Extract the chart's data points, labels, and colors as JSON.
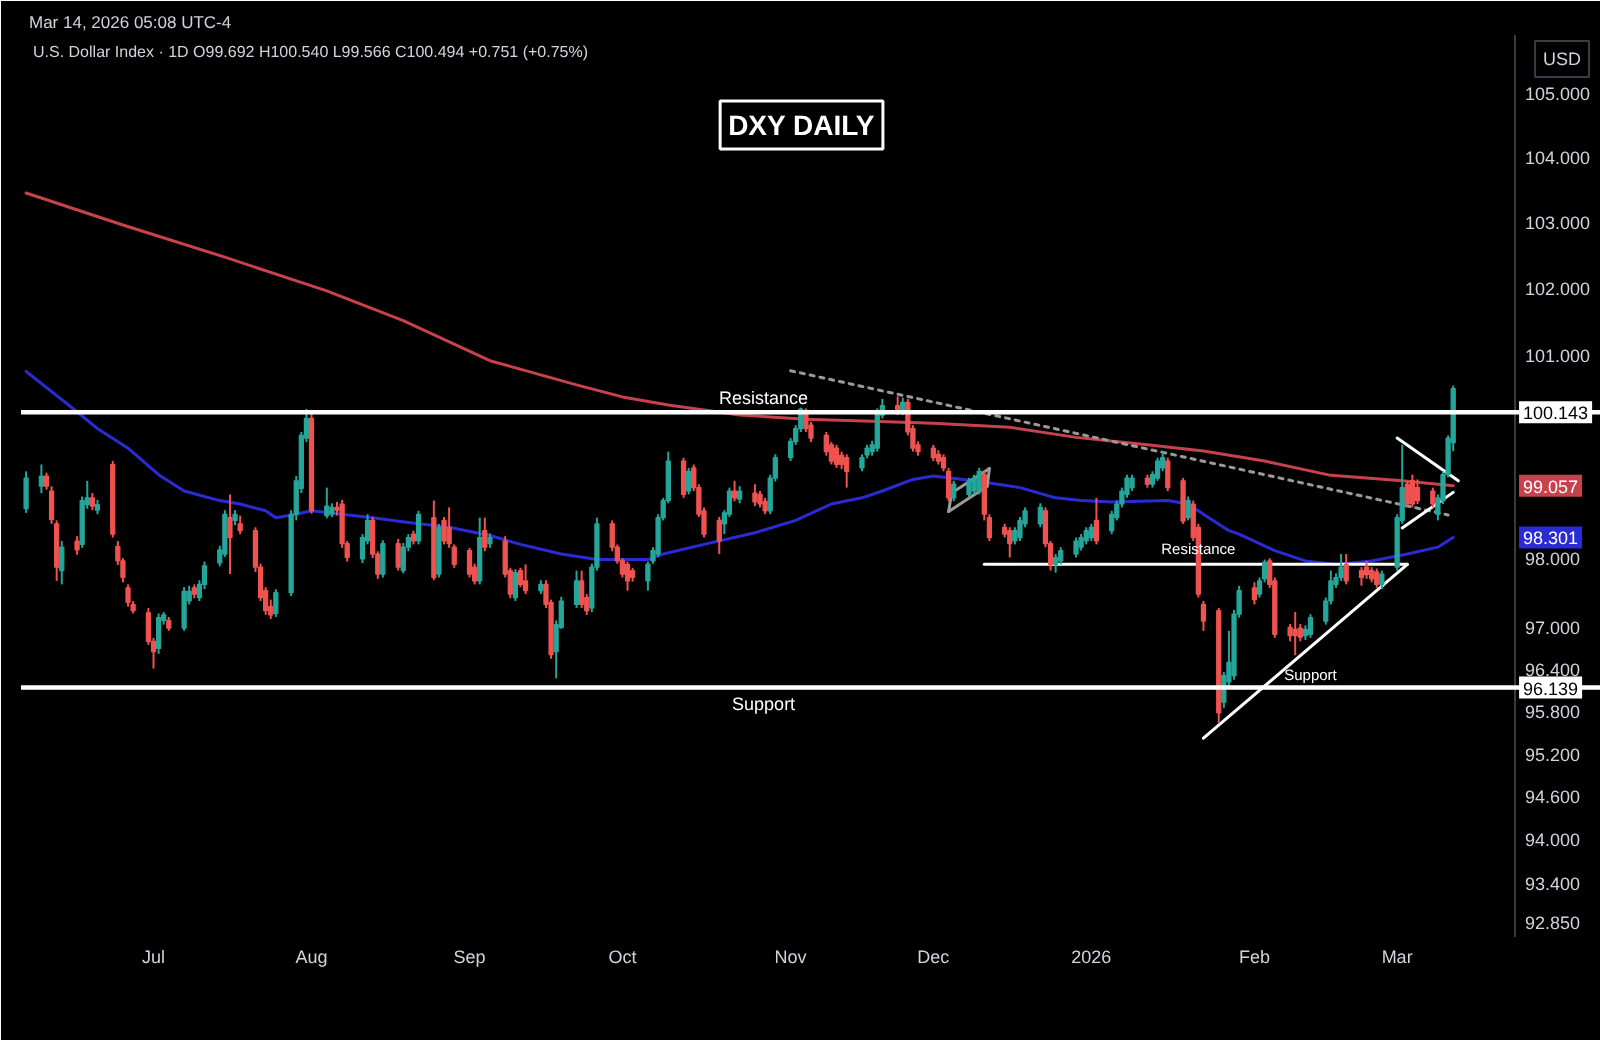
{
  "chart_data": {
    "type": "candlestick",
    "title": "DXY DAILY",
    "subtitle": "U.S. Dollar Index · 1D   O99.692 H100.540 L99.566 C100.494 +0.751 (+0.75%)",
    "ylabel": "USD",
    "annotations": [
      "Mar 14, 2026 05:08 UTC-4",
      {
        "text": "Resistance",
        "x": "2026-01-22",
        "y": 97.91
      },
      {
        "text": "Support",
        "x": "2026-02-13",
        "y": 96.1
      },
      {
        "text": "100.143",
        "y": 100.143
      },
      {
        "text": "99.057",
        "y": 99.057
      },
      {
        "text": "98.301",
        "y": 98.301
      },
      {
        "text": "96.139",
        "y": 96.139
      }
    ],
    "log": true,
    "grid": false,
    "ylim": [
      92.65,
      105.9
    ],
    "yticks": [
      {
        "value": 92.85,
        "label": "92.850"
      },
      {
        "value": 93.4,
        "label": "93.400"
      },
      {
        "value": 94,
        "label": "94.000"
      },
      {
        "value": 94.6,
        "label": "94.600"
      },
      {
        "value": 95.2,
        "label": "95.200"
      },
      {
        "value": 95.8,
        "label": "95.800"
      },
      {
        "value": 96.4,
        "label": "96.400"
      },
      {
        "value": 97,
        "label": "97.000"
      },
      {
        "value": 98,
        "label": "98.000"
      },
      {
        "value": 101,
        "label": "101.000"
      },
      {
        "value": 102,
        "label": "102.000"
      },
      {
        "value": 103,
        "label": "103.000"
      },
      {
        "value": 104,
        "label": "104.000"
      },
      {
        "value": 105,
        "label": "105.000"
      }
    ],
    "xlim": [
      "2025-06-05",
      "2026-04-11"
    ],
    "xticks": [
      {
        "value": "2025-07-01",
        "label": "Jul"
      },
      {
        "value": "2025-08-01",
        "label": "Aug"
      },
      {
        "value": "2025-09-01",
        "label": "Sep"
      },
      {
        "value": "2025-10-01",
        "label": "Oct"
      },
      {
        "value": "2025-11-03",
        "label": "Nov"
      },
      {
        "value": "2025-12-01",
        "label": "Dec"
      },
      {
        "value": "2026-01-01",
        "label": "2026"
      },
      {
        "value": "2026-02-02",
        "label": "Feb"
      },
      {
        "value": "2026-03-02",
        "label": "Mar"
      }
    ],
    "ref_lines": [
      {
        "axis": "y",
        "value": 100.143,
        "label": "Resistance",
        "color": "#ffffff"
      },
      {
        "axis": "y",
        "value": 96.139,
        "label": "Support",
        "color": "#ffffff"
      }
    ],
    "x": [
      "2025-06-06",
      "2025-06-09",
      "2025-06-10",
      "2025-06-11",
      "2025-06-12",
      "2025-06-13",
      "2025-06-16",
      "2025-06-17",
      "2025-06-18",
      "2025-06-19",
      "2025-06-20",
      "2025-06-23",
      "2025-06-24",
      "2025-06-25",
      "2025-06-26",
      "2025-06-27",
      "2025-06-30",
      "2025-07-01",
      "2025-07-02",
      "2025-07-03",
      "2025-07-04",
      "2025-07-07",
      "2025-07-08",
      "2025-07-09",
      "2025-07-10",
      "2025-07-11",
      "2025-07-14",
      "2025-07-15",
      "2025-07-16",
      "2025-07-17",
      "2025-07-18",
      "2025-07-21",
      "2025-07-22",
      "2025-07-23",
      "2025-07-24",
      "2025-07-25",
      "2025-07-28",
      "2025-07-29",
      "2025-07-30",
      "2025-07-31",
      "2025-08-01",
      "2025-08-04",
      "2025-08-05",
      "2025-08-06",
      "2025-08-07",
      "2025-08-08",
      "2025-08-11",
      "2025-08-12",
      "2025-08-13",
      "2025-08-14",
      "2025-08-15",
      "2025-08-18",
      "2025-08-19",
      "2025-08-20",
      "2025-08-21",
      "2025-08-22",
      "2025-08-25",
      "2025-08-26",
      "2025-08-27",
      "2025-08-28",
      "2025-08-29",
      "2025-09-01",
      "2025-09-02",
      "2025-09-03",
      "2025-09-04",
      "2025-09-05",
      "2025-09-08",
      "2025-09-09",
      "2025-09-10",
      "2025-09-11",
      "2025-09-12",
      "2025-09-15",
      "2025-09-16",
      "2025-09-17",
      "2025-09-18",
      "2025-09-19",
      "2025-09-22",
      "2025-09-23",
      "2025-09-24",
      "2025-09-25",
      "2025-09-26",
      "2025-09-29",
      "2025-09-30",
      "2025-10-01",
      "2025-10-02",
      "2025-10-03",
      "2025-10-06",
      "2025-10-07",
      "2025-10-08",
      "2025-10-09",
      "2025-10-10",
      "2025-10-13",
      "2025-10-14",
      "2025-10-15",
      "2025-10-16",
      "2025-10-17",
      "2025-10-20",
      "2025-10-21",
      "2025-10-22",
      "2025-10-23",
      "2025-10-24",
      "2025-10-27",
      "2025-10-28",
      "2025-10-29",
      "2025-10-30",
      "2025-10-31",
      "2025-11-03",
      "2025-11-04",
      "2025-11-05",
      "2025-11-06",
      "2025-11-07",
      "2025-11-10",
      "2025-11-11",
      "2025-11-12",
      "2025-11-13",
      "2025-11-14",
      "2025-11-17",
      "2025-11-18",
      "2025-11-19",
      "2025-11-20",
      "2025-11-21",
      "2025-11-24",
      "2025-11-25",
      "2025-11-26",
      "2025-11-27",
      "2025-11-28",
      "2025-12-01",
      "2025-12-02",
      "2025-12-03",
      "2025-12-04",
      "2025-12-05",
      "2025-12-08",
      "2025-12-09",
      "2025-12-10",
      "2025-12-11",
      "2025-12-12",
      "2025-12-15",
      "2025-12-16",
      "2025-12-17",
      "2025-12-18",
      "2025-12-19",
      "2025-12-22",
      "2025-12-23",
      "2025-12-24",
      "2025-12-25",
      "2025-12-26",
      "2025-12-29",
      "2025-12-30",
      "2025-12-31",
      "2026-01-01",
      "2026-01-02",
      "2026-01-05",
      "2026-01-06",
      "2026-01-07",
      "2026-01-08",
      "2026-01-09",
      "2026-01-12",
      "2026-01-13",
      "2026-01-14",
      "2026-01-15",
      "2026-01-16",
      "2026-01-19",
      "2026-01-20",
      "2026-01-21",
      "2026-01-22",
      "2026-01-23",
      "2026-01-26",
      "2026-01-27",
      "2026-01-28",
      "2026-01-29",
      "2026-01-30",
      "2026-02-02",
      "2026-02-03",
      "2026-02-04",
      "2026-02-05",
      "2026-02-06",
      "2026-02-09",
      "2026-02-10",
      "2026-02-11",
      "2026-02-12",
      "2026-02-13",
      "2026-02-16",
      "2026-02-17",
      "2026-02-18",
      "2026-02-19",
      "2026-02-20",
      "2026-02-23",
      "2026-02-24",
      "2026-02-25",
      "2026-02-26",
      "2026-02-27",
      "2026-03-02",
      "2026-03-03",
      "2026-03-04",
      "2026-03-05",
      "2026-03-06",
      "2026-03-09",
      "2026-03-10",
      "2026-03-11",
      "2026-03-12",
      "2026-03-13"
    ],
    "ohlc": [
      [
        98.72,
        99.27,
        98.66,
        99.17
      ],
      [
        99.05,
        99.37,
        98.95,
        99.2
      ],
      [
        99.2,
        99.25,
        99.0,
        99.05
      ],
      [
        98.98,
        99.05,
        98.5,
        98.56
      ],
      [
        98.5,
        98.55,
        97.67,
        97.87
      ],
      [
        97.82,
        98.25,
        97.62,
        98.16
      ],
      [
        98.25,
        98.32,
        98.05,
        98.12
      ],
      [
        98.2,
        98.9,
        98.15,
        98.84
      ],
      [
        98.78,
        99.13,
        98.72,
        98.88
      ],
      [
        98.88,
        98.95,
        98.7,
        98.76
      ],
      [
        98.7,
        98.85,
        98.64,
        98.78
      ],
      [
        99.37,
        99.42,
        98.3,
        98.35
      ],
      [
        98.17,
        98.25,
        97.9,
        97.96
      ],
      [
        97.96,
        98.0,
        97.65,
        97.72
      ],
      [
        97.57,
        97.62,
        97.3,
        97.36
      ],
      [
        97.33,
        97.38,
        97.2,
        97.24
      ],
      [
        97.21,
        97.28,
        96.75,
        96.8
      ],
      [
        96.8,
        96.85,
        96.41,
        96.65
      ],
      [
        96.7,
        97.2,
        96.62,
        97.14
      ],
      [
        97.1,
        97.22,
        97.04,
        97.18
      ],
      [
        97.1,
        97.15,
        96.95,
        96.99
      ],
      [
        96.99,
        97.58,
        96.95,
        97.52
      ],
      [
        97.38,
        97.6,
        97.33,
        97.52
      ],
      [
        97.57,
        97.62,
        97.42,
        97.48
      ],
      [
        97.43,
        97.68,
        97.38,
        97.62
      ],
      [
        97.62,
        97.95,
        97.55,
        97.89
      ],
      [
        97.93,
        98.18,
        97.88,
        98.12
      ],
      [
        98.06,
        98.7,
        98.02,
        98.64
      ],
      [
        98.59,
        98.93,
        97.77,
        98.3
      ],
      [
        98.55,
        98.7,
        98.48,
        98.64
      ],
      [
        98.5,
        98.62,
        98.35,
        98.4
      ],
      [
        98.4,
        98.45,
        97.8,
        97.87
      ],
      [
        97.87,
        97.92,
        97.38,
        97.43
      ],
      [
        97.53,
        97.58,
        97.18,
        97.24
      ],
      [
        97.3,
        97.4,
        97.12,
        97.18
      ],
      [
        97.2,
        97.55,
        97.15,
        97.5
      ],
      [
        97.5,
        98.7,
        97.45,
        98.64
      ],
      [
        98.64,
        99.2,
        98.55,
        99.13
      ],
      [
        99.02,
        99.85,
        98.95,
        99.8
      ],
      [
        99.76,
        100.19,
        99.7,
        100.05
      ],
      [
        100.05,
        100.15,
        98.65,
        98.69
      ],
      [
        98.62,
        99.03,
        98.58,
        98.76
      ],
      [
        98.64,
        98.8,
        98.6,
        98.74
      ],
      [
        98.74,
        98.82,
        98.62,
        98.7
      ],
      [
        98.79,
        98.85,
        98.15,
        98.21
      ],
      [
        98.21,
        98.25,
        97.95,
        98.01
      ],
      [
        97.99,
        98.35,
        97.93,
        98.3
      ],
      [
        98.25,
        98.64,
        98.2,
        98.55
      ],
      [
        98.55,
        98.6,
        98.0,
        98.06
      ],
      [
        98.06,
        98.1,
        97.7,
        97.77
      ],
      [
        97.77,
        98.26,
        97.72,
        98.21
      ],
      [
        98.21,
        98.28,
        97.82,
        97.87
      ],
      [
        97.82,
        98.22,
        97.78,
        98.16
      ],
      [
        98.16,
        98.35,
        98.1,
        98.3
      ],
      [
        98.35,
        98.4,
        98.2,
        98.25
      ],
      [
        98.25,
        98.69,
        98.2,
        98.64
      ],
      [
        98.59,
        98.84,
        97.68,
        97.72
      ],
      [
        97.77,
        98.5,
        97.72,
        98.45
      ],
      [
        98.55,
        98.6,
        98.2,
        98.25
      ],
      [
        98.45,
        98.74,
        98.15,
        98.21
      ],
      [
        98.16,
        98.2,
        97.86,
        97.91
      ],
      [
        98.11,
        98.15,
        97.72,
        97.77
      ],
      [
        97.87,
        97.92,
        97.62,
        97.67
      ],
      [
        97.67,
        98.59,
        97.62,
        98.3
      ],
      [
        98.4,
        98.59,
        98.1,
        98.16
      ],
      [
        98.21,
        98.36,
        98.15,
        98.3
      ],
      [
        98.25,
        98.32,
        97.72,
        97.77
      ],
      [
        97.82,
        97.86,
        97.42,
        97.48
      ],
      [
        97.43,
        97.84,
        97.38,
        97.79
      ],
      [
        97.82,
        97.86,
        97.58,
        97.62
      ],
      [
        97.67,
        97.91,
        97.48,
        97.53
      ],
      [
        97.53,
        97.68,
        97.48,
        97.62
      ],
      [
        97.62,
        97.68,
        97.28,
        97.33
      ],
      [
        97.36,
        97.4,
        96.55,
        96.61
      ],
      [
        96.65,
        97.1,
        96.27,
        97.04
      ],
      [
        97.0,
        97.44,
        96.98,
        97.38
      ],
      [
        97.33,
        97.82,
        97.28,
        97.67
      ],
      [
        97.67,
        97.82,
        97.28,
        97.33
      ],
      [
        97.43,
        97.48,
        97.18,
        97.24
      ],
      [
        97.28,
        97.92,
        97.22,
        97.87
      ],
      [
        97.87,
        98.59,
        97.82,
        98.5
      ],
      [
        98.5,
        98.55,
        98.1,
        98.16
      ],
      [
        98.16,
        98.2,
        97.92,
        97.96
      ],
      [
        97.96,
        98.0,
        97.72,
        97.77
      ],
      [
        97.91,
        97.95,
        97.53,
        97.67
      ],
      [
        97.82,
        97.86,
        97.66,
        97.72
      ],
      [
        97.67,
        97.95,
        97.53,
        97.91
      ],
      [
        97.96,
        98.16,
        97.92,
        98.11
      ],
      [
        98.06,
        98.64,
        98.02,
        98.59
      ],
      [
        98.59,
        98.88,
        98.55,
        98.84
      ],
      [
        98.84,
        99.56,
        98.8,
        99.42
      ],
      [
        99.42,
        99.47,
        98.88,
        98.93
      ],
      [
        98.98,
        99.32,
        98.93,
        99.27
      ],
      [
        99.32,
        99.37,
        98.98,
        99.03
      ],
      [
        99.03,
        99.08,
        98.6,
        98.64
      ],
      [
        98.69,
        98.74,
        98.3,
        98.35
      ],
      [
        98.55,
        98.6,
        98.06,
        98.25
      ],
      [
        98.5,
        98.7,
        98.35,
        98.66
      ],
      [
        98.64,
        99.03,
        98.6,
        98.98
      ],
      [
        98.98,
        99.13,
        98.83,
        98.88
      ],
      [
        98.86,
        99.05,
        98.8,
        98.98
      ],
      [
        98.95,
        99.08,
        98.76,
        98.82
      ],
      [
        98.93,
        98.98,
        98.74,
        98.79
      ],
      [
        98.83,
        98.88,
        98.64,
        98.69
      ],
      [
        98.69,
        99.22,
        98.64,
        99.17
      ],
      [
        99.17,
        99.52,
        99.12,
        99.47
      ],
      [
        99.47,
        99.76,
        99.42,
        99.71
      ],
      [
        99.71,
        99.95,
        99.66,
        99.9
      ],
      [
        99.9,
        100.21,
        99.85,
        100.19
      ],
      [
        100.15,
        100.2,
        99.85,
        99.9
      ],
      [
        99.95,
        100.0,
        99.7,
        99.76
      ],
      [
        99.8,
        99.85,
        99.5,
        99.56
      ],
      [
        99.66,
        99.7,
        99.37,
        99.42
      ],
      [
        99.61,
        99.66,
        99.32,
        99.37
      ],
      [
        99.51,
        99.56,
        99.3,
        99.37
      ],
      [
        99.47,
        99.52,
        99.03,
        99.27
      ],
      [
        99.32,
        99.52,
        99.27,
        99.47
      ],
      [
        99.51,
        99.66,
        99.46,
        99.61
      ],
      [
        99.56,
        99.72,
        99.5,
        99.66
      ],
      [
        99.61,
        100.2,
        99.56,
        100.15
      ],
      [
        100.1,
        100.34,
        100.05,
        100.24
      ],
      [
        100.24,
        100.38,
        100.1,
        100.16
      ],
      [
        100.16,
        100.36,
        100.1,
        100.29
      ],
      [
        100.29,
        100.34,
        99.8,
        99.85
      ],
      [
        99.9,
        99.95,
        99.56,
        99.61
      ],
      [
        99.66,
        99.71,
        99.5,
        99.56
      ],
      [
        99.61,
        99.66,
        99.42,
        99.47
      ],
      [
        99.52,
        99.58,
        99.37,
        99.42
      ],
      [
        99.47,
        99.52,
        99.27,
        99.32
      ],
      [
        99.27,
        99.32,
        98.83,
        98.88
      ],
      [
        98.88,
        99.13,
        98.83,
        99.08
      ],
      [
        98.93,
        99.17,
        98.88,
        99.13
      ],
      [
        98.98,
        99.22,
        98.93,
        99.17
      ],
      [
        98.98,
        99.32,
        98.93,
        99.27
      ],
      [
        99.22,
        99.27,
        98.55,
        98.64
      ],
      [
        98.59,
        98.64,
        98.25,
        98.3
      ],
      [
        98.45,
        98.5,
        98.3,
        98.35
      ],
      [
        98.4,
        98.45,
        98.01,
        98.21
      ],
      [
        98.25,
        98.45,
        98.2,
        98.4
      ],
      [
        98.3,
        98.6,
        98.25,
        98.55
      ],
      [
        98.5,
        98.74,
        98.45,
        98.69
      ],
      [
        98.5,
        98.8,
        98.45,
        98.74
      ],
      [
        98.69,
        98.74,
        98.16,
        98.21
      ],
      [
        98.21,
        98.25,
        97.82,
        97.91
      ],
      [
        97.91,
        98.06,
        97.79,
        98.01
      ],
      [
        97.96,
        98.16,
        97.91,
        98.11
      ],
      [
        98.06,
        98.3,
        98.01,
        98.25
      ],
      [
        98.16,
        98.35,
        98.11,
        98.3
      ],
      [
        98.25,
        98.45,
        98.2,
        98.4
      ],
      [
        98.3,
        98.5,
        98.25,
        98.45
      ],
      [
        98.55,
        98.88,
        98.2,
        98.25
      ],
      [
        98.4,
        98.69,
        98.35,
        98.64
      ],
      [
        98.59,
        98.84,
        98.55,
        98.79
      ],
      [
        98.79,
        99.03,
        98.74,
        98.98
      ],
      [
        98.93,
        99.22,
        98.88,
        99.17
      ],
      [
        99.03,
        99.22,
        98.98,
        99.17
      ],
      [
        99.17,
        99.22,
        99.03,
        99.08
      ],
      [
        99.08,
        99.27,
        99.03,
        99.22
      ],
      [
        99.17,
        99.47,
        99.13,
        99.42
      ],
      [
        99.32,
        99.55,
        99.27,
        99.47
      ],
      [
        99.42,
        99.47,
        98.98,
        99.03
      ],
      [
        99.13,
        99.17,
        98.5,
        98.54
      ],
      [
        98.59,
        98.9,
        98.55,
        98.84
      ],
      [
        98.79,
        98.84,
        98.25,
        98.3
      ],
      [
        98.45,
        98.5,
        97.43,
        97.48
      ],
      [
        97.33,
        97.38,
        96.95,
        97.09
      ],
      [
        97.24,
        97.28,
        95.63,
        95.78
      ],
      [
        95.93,
        96.36,
        95.85,
        96.31
      ],
      [
        96.22,
        96.95,
        96.15,
        96.5
      ],
      [
        96.31,
        97.25,
        96.25,
        97.19
      ],
      [
        97.19,
        97.6,
        97.14,
        97.53
      ],
      [
        97.57,
        97.65,
        97.33,
        97.4
      ],
      [
        97.48,
        97.72,
        97.43,
        97.67
      ],
      [
        97.7,
        97.98,
        97.65,
        97.94
      ],
      [
        97.96,
        98.0,
        97.57,
        97.62
      ],
      [
        97.67,
        97.72,
        96.85,
        96.9
      ],
      [
        97.0,
        97.05,
        96.8,
        96.88
      ],
      [
        96.97,
        97.22,
        96.6,
        96.88
      ],
      [
        96.99,
        97.05,
        96.8,
        96.86
      ],
      [
        96.88,
        97.03,
        96.82,
        96.97
      ],
      [
        96.9,
        97.19,
        96.85,
        97.14
      ],
      [
        97.09,
        97.43,
        97.04,
        97.38
      ],
      [
        97.38,
        97.82,
        97.33,
        97.67
      ],
      [
        97.62,
        97.78,
        97.57,
        97.72
      ],
      [
        97.72,
        98.06,
        97.67,
        97.87
      ],
      [
        97.91,
        98.06,
        97.62,
        97.67
      ],
      [
        97.82,
        97.87,
        97.6,
        97.72
      ],
      [
        97.87,
        97.96,
        97.7,
        97.76
      ],
      [
        97.82,
        97.87,
        97.65,
        97.7
      ],
      [
        97.8,
        97.85,
        97.57,
        97.62
      ],
      [
        97.62,
        97.82,
        97.55,
        97.77
      ],
      [
        97.87,
        98.64,
        97.82,
        98.59
      ],
      [
        98.55,
        99.66,
        98.5,
        99.03
      ],
      [
        99.08,
        99.13,
        98.74,
        98.79
      ],
      [
        99.13,
        99.22,
        98.74,
        98.79
      ],
      [
        99.03,
        99.15,
        98.79,
        98.84
      ],
      [
        98.98,
        99.03,
        98.74,
        98.79
      ],
      [
        98.64,
        98.93,
        98.55,
        98.88
      ],
      [
        98.84,
        99.27,
        98.79,
        99.22
      ],
      [
        99.22,
        99.8,
        99.18,
        99.76
      ],
      [
        99.692,
        100.54,
        99.566,
        100.494
      ]
    ],
    "colors": [
      "#26a69a",
      "#26a69a",
      "#ef5350",
      "#ef5350",
      "#ef5350",
      "#26a69a",
      "#ef5350",
      "#26a69a",
      "#26a69a",
      "#ef5350",
      "#26a69a",
      "#ef5350",
      "#ef5350",
      "#ef5350",
      "#ef5350",
      "#ef5350",
      "#ef5350",
      "#ef5350",
      "#26a69a",
      "#26a69a",
      "#ef5350",
      "#26a69a",
      "#26a69a",
      "#ef5350",
      "#26a69a",
      "#26a69a",
      "#26a69a",
      "#26a69a",
      "#ef5350",
      "#26a69a",
      "#ef5350",
      "#ef5350",
      "#ef5350",
      "#ef5350",
      "#ef5350",
      "#26a69a",
      "#26a69a",
      "#26a69a",
      "#26a69a",
      "#26a69a",
      "#ef5350",
      "#26a69a",
      "#26a69a",
      "#ef5350",
      "#ef5350",
      "#ef5350",
      "#26a69a",
      "#26a69a",
      "#ef5350",
      "#ef5350",
      "#26a69a",
      "#ef5350",
      "#26a69a",
      "#26a69a",
      "#ef5350",
      "#26a69a",
      "#ef5350",
      "#26a69a",
      "#ef5350",
      "#ef5350",
      "#ef5350",
      "#ef5350",
      "#ef5350",
      "#26a69a",
      "#ef5350",
      "#26a69a",
      "#ef5350",
      "#ef5350",
      "#26a69a",
      "#ef5350",
      "#ef5350",
      "#26a69a",
      "#ef5350",
      "#ef5350",
      "#26a69a",
      "#26a69a",
      "#26a69a",
      "#ef5350",
      "#ef5350",
      "#26a69a",
      "#26a69a",
      "#ef5350",
      "#ef5350",
      "#ef5350",
      "#ef5350",
      "#ef5350",
      "#26a69a",
      "#26a69a",
      "#26a69a",
      "#26a69a",
      "#26a69a",
      "#ef5350",
      "#26a69a",
      "#ef5350",
      "#ef5350",
      "#ef5350",
      "#ef5350",
      "#26a69a",
      "#26a69a",
      "#ef5350",
      "#26a69a",
      "#ef5350",
      "#ef5350",
      "#ef5350",
      "#26a69a",
      "#26a69a",
      "#26a69a",
      "#26a69a",
      "#26a69a",
      "#ef5350",
      "#ef5350",
      "#ef5350",
      "#ef5350",
      "#ef5350",
      "#ef5350",
      "#ef5350",
      "#26a69a",
      "#26a69a",
      "#26a69a",
      "#26a69a",
      "#26a69a",
      "#ef5350",
      "#26a69a",
      "#ef5350",
      "#ef5350",
      "#ef5350",
      "#ef5350",
      "#ef5350",
      "#ef5350",
      "#ef5350",
      "#26a69a",
      "#26a69a",
      "#26a69a",
      "#26a69a",
      "#ef5350",
      "#ef5350",
      "#ef5350",
      "#ef5350",
      "#26a69a",
      "#26a69a",
      "#26a69a",
      "#26a69a",
      "#ef5350",
      "#ef5350",
      "#26a69a",
      "#26a69a",
      "#26a69a",
      "#26a69a",
      "#26a69a",
      "#26a69a",
      "#ef5350",
      "#26a69a",
      "#26a69a",
      "#26a69a",
      "#26a69a",
      "#26a69a",
      "#ef5350",
      "#26a69a",
      "#26a69a",
      "#26a69a",
      "#ef5350",
      "#ef5350",
      "#26a69a",
      "#ef5350",
      "#ef5350",
      "#ef5350",
      "#ef5350",
      "#26a69a",
      "#26a69a",
      "#26a69a",
      "#26a69a",
      "#ef5350",
      "#26a69a",
      "#26a69a",
      "#ef5350",
      "#ef5350",
      "#ef5350",
      "#ef5350",
      "#ef5350",
      "#26a69a",
      "#26a69a",
      "#26a69a",
      "#26a69a",
      "#26a69a",
      "#26a69a",
      "#ef5350",
      "#ef5350",
      "#ef5350",
      "#ef5350",
      "#ef5350",
      "#26a69a",
      "#26a69a",
      "#26a69a",
      "#ef5350",
      "#ef5350",
      "#ef5350",
      "#ef5350",
      "#26a69a",
      "#26a69a",
      "#26a69a",
      "#26a69a"
    ],
    "series": [
      {
        "type": "line",
        "color": "#c8424e",
        "x": [
          "2025-06-06",
          "2025-06-25",
          "2025-07-15",
          "2025-08-04",
          "2025-08-19",
          "2025-09-05",
          "2025-09-22",
          "2025-10-01",
          "2025-10-10",
          "2025-10-24",
          "2025-11-06",
          "2025-11-19",
          "2025-12-01",
          "2025-12-16",
          "2025-12-29",
          "2026-01-12",
          "2026-01-23",
          "2026-02-04",
          "2026-02-17",
          "2026-03-03",
          "2026-03-13"
        ],
        "values": [
          103.45,
          102.96,
          102.47,
          101.96,
          101.51,
          100.91,
          100.55,
          100.37,
          100.25,
          100.1,
          100.04,
          100.01,
          99.98,
          99.92,
          99.77,
          99.66,
          99.57,
          99.42,
          99.21,
          99.13,
          99.057
        ]
      },
      {
        "type": "line",
        "color": "#2b2bd6",
        "x": [
          "2025-06-06",
          "2025-06-16",
          "2025-06-20",
          "2025-06-26",
          "2025-07-02",
          "2025-07-07",
          "2025-07-14",
          "2025-07-18",
          "2025-07-23",
          "2025-07-25",
          "2025-07-29",
          "2025-08-01",
          "2025-08-13",
          "2025-08-20",
          "2025-08-28",
          "2025-09-05",
          "2025-09-11",
          "2025-09-19",
          "2025-09-26",
          "2025-10-06",
          "2025-10-09",
          "2025-10-17",
          "2025-10-27",
          "2025-11-04",
          "2025-11-11",
          "2025-11-17",
          "2025-11-21",
          "2025-11-27",
          "2025-12-01",
          "2025-12-09",
          "2025-12-18",
          "2025-12-25",
          "2025-12-30",
          "2026-01-05",
          "2026-01-16",
          "2026-01-20",
          "2026-01-23",
          "2026-01-28",
          "2026-01-30",
          "2026-02-06",
          "2026-02-12",
          "2026-02-18",
          "2026-02-25",
          "2026-03-04",
          "2026-03-10",
          "2026-03-13"
        ],
        "values": [
          100.75,
          100.15,
          99.9,
          99.61,
          99.22,
          98.98,
          98.84,
          98.79,
          98.69,
          98.59,
          98.64,
          98.69,
          98.59,
          98.52,
          98.45,
          98.33,
          98.2,
          98.06,
          97.98,
          97.98,
          98.06,
          98.2,
          98.37,
          98.55,
          98.79,
          98.88,
          98.98,
          99.15,
          99.2,
          99.13,
          99.03,
          98.88,
          98.84,
          98.82,
          98.84,
          98.79,
          98.64,
          98.4,
          98.35,
          98.11,
          97.96,
          97.91,
          97.96,
          98.06,
          98.16,
          98.301
        ]
      },
      {
        "type": "line",
        "color": "#9a9a9a",
        "line_style": "dotted",
        "x": [
          "2025-11-03",
          "2026-03-12"
        ],
        "values": [
          100.76,
          98.63
        ]
      },
      {
        "type": "line",
        "color": "#9a9a9a",
        "x": [
          "2025-12-04T14:00",
          "2025-12-12"
        ],
        "values": [
          98.95,
          99.31
        ]
      },
      {
        "type": "line",
        "color": "#9a9a9a",
        "x": [
          "2025-12-04",
          "2025-12-11T14:00"
        ],
        "values": [
          98.68,
          99.05
        ]
      },
      {
        "type": "line",
        "color": "#9a9a9a",
        "x": [
          "2025-12-04",
          "2025-12-04T14:00"
        ],
        "values": [
          98.68,
          98.95
        ]
      },
      {
        "type": "line",
        "color": "#9a9a9a",
        "x": [
          "2025-12-11T14:00",
          "2025-12-12"
        ],
        "values": [
          99.05,
          99.31
        ]
      },
      {
        "type": "line",
        "color": "#ffffff",
        "x": [
          "2025-12-11",
          "2026-03-04"
        ],
        "values": [
          97.91,
          97.91
        ]
      },
      {
        "type": "line",
        "color": "#ffffff",
        "x": [
          "2026-01-23",
          "2026-03-04"
        ],
        "values": [
          95.42,
          97.91
        ]
      },
      {
        "type": "line",
        "color": "#ffffff",
        "x": [
          "2026-03-02",
          "2026-03-14"
        ],
        "values": [
          99.76,
          99.13
        ]
      },
      {
        "type": "line",
        "color": "#ffffff",
        "x": [
          "2026-03-03",
          "2026-03-13"
        ],
        "values": [
          98.44,
          98.96
        ]
      }
    ]
  }
}
